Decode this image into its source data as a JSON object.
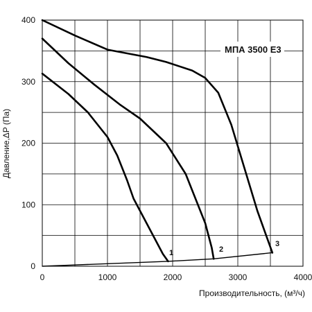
{
  "chart_data": {
    "type": "line",
    "title": "МПА 3500 Е3",
    "xlabel": "Производительность, (м³/ч)",
    "ylabel": "Давление,ΔP (Па)",
    "xlim": [
      0,
      4000
    ],
    "ylim": [
      0,
      400
    ],
    "x_ticks": [
      "0",
      "1000",
      "2000",
      "3000",
      "4000"
    ],
    "y_ticks": [
      "0",
      "100",
      "200",
      "300",
      "400"
    ],
    "grid": true,
    "series": [
      {
        "name": "1",
        "x": [
          0,
          400,
          700,
          1000,
          1150,
          1300,
          1400,
          1550,
          1700,
          1850,
          1930
        ],
        "y": [
          313,
          280,
          250,
          210,
          180,
          140,
          110,
          80,
          50,
          20,
          8
        ]
      },
      {
        "name": "2",
        "x": [
          0,
          400,
          800,
          1200,
          1500,
          1700,
          1900,
          2050,
          2200,
          2350,
          2500,
          2600,
          2630
        ],
        "y": [
          370,
          330,
          295,
          262,
          240,
          220,
          200,
          175,
          150,
          110,
          70,
          30,
          12
        ]
      },
      {
        "name": "3",
        "x": [
          0,
          500,
          1000,
          1600,
          1900,
          2100,
          2300,
          2500,
          2700,
          2900,
          3100,
          3300,
          3530
        ],
        "y": [
          400,
          375,
          352,
          340,
          332,
          325,
          318,
          306,
          282,
          230,
          160,
          90,
          22
        ]
      },
      {
        "name": "system",
        "x": [
          0,
          1930,
          2630,
          3530
        ],
        "y": [
          0,
          8,
          12,
          22
        ]
      }
    ],
    "curve_labels": [
      "1",
      "2",
      "3"
    ]
  }
}
